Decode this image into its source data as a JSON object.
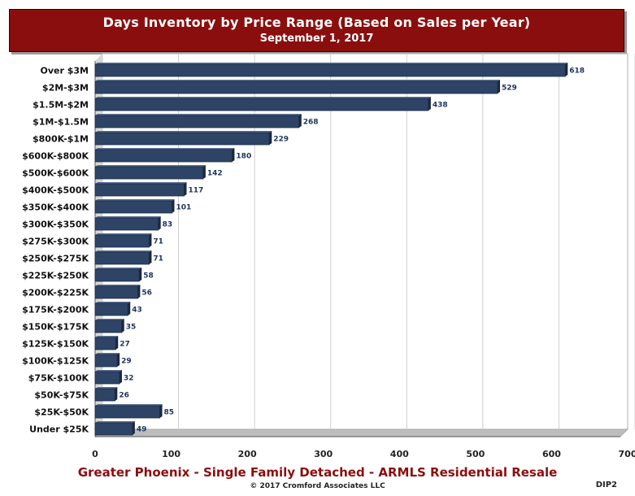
{
  "header": {
    "title": "Days Inventory by Price Range (Based on Sales per Year)",
    "subtitle": "September 1, 2017"
  },
  "footer": {
    "source": "Greater Phoenix - Single Family Detached - ARMLS Residential Resale",
    "copyright": "© 2017 Cromford Associates LLC",
    "code": "DIP2"
  },
  "chart_data": {
    "type": "bar",
    "orientation": "horizontal",
    "title": "Days Inventory by Price Range (Based on Sales per Year)",
    "subtitle": "September 1, 2017",
    "categories": [
      "Over $3M",
      "$2M-$3M",
      "$1.5M-$2M",
      "$1M-$1.5M",
      "$800K-$1M",
      "$600K-$800K",
      "$500K-$600K",
      "$400K-$500K",
      "$350K-$400K",
      "$300K-$350K",
      "$275K-$300K",
      "$250K-$275K",
      "$225K-$250K",
      "$200K-$225K",
      "$175K-$200K",
      "$150K-$175K",
      "$125K-$150K",
      "$100K-$125K",
      "$75K-$100K",
      "$50K-$75K",
      "$25K-$50K",
      "Under $25K"
    ],
    "values": [
      618,
      529,
      438,
      268,
      229,
      180,
      142,
      117,
      101,
      83,
      71,
      71,
      58,
      56,
      43,
      35,
      27,
      29,
      32,
      26,
      85,
      49
    ],
    "xlim": [
      0,
      700
    ],
    "xticks": [
      0,
      100,
      200,
      300,
      400,
      500,
      600,
      700
    ],
    "grid": true,
    "colors": {
      "bar": "#2e4466",
      "bar_edge": "#1a2a44",
      "label": "#1f3560",
      "grid": "#cfcfcf"
    }
  }
}
